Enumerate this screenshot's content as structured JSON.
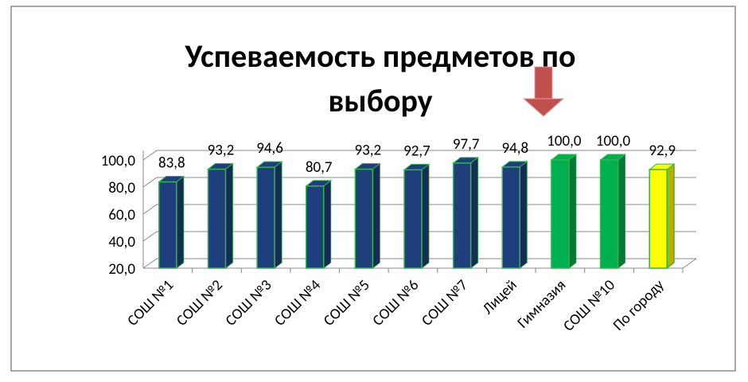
{
  "chart_data": {
    "type": "bar",
    "title": "Успеваемость предметов по выбору",
    "categories": [
      "СОШ №1",
      "СОШ №2",
      "СОШ №3",
      "СОШ №4",
      "СОШ №5",
      "СОШ №6",
      "СОШ №7",
      "Лицей",
      "Гимназия",
      "СОШ №10",
      "По городу"
    ],
    "values": [
      83.8,
      93.2,
      94.6,
      80.7,
      93.2,
      92.7,
      97.7,
      94.8,
      100.0,
      100.0,
      92.9
    ],
    "value_labels": [
      "83,8",
      "93,2",
      "94,6",
      "80,7",
      "93,2",
      "92,7",
      "97,7",
      "94,8",
      "100,0",
      "100,0",
      "92,9"
    ],
    "colors": [
      "#1f3f7c",
      "#1f3f7c",
      "#1f3f7c",
      "#1f3f7c",
      "#1f3f7c",
      "#1f3f7c",
      "#1f3f7c",
      "#1f3f7c",
      "#00b050",
      "#00b050",
      "#ffff00"
    ],
    "ylim": [
      20,
      100
    ],
    "yticks": [
      {
        "value": 20,
        "label": "20,0"
      },
      {
        "value": 40,
        "label": "40,0"
      },
      {
        "value": 60,
        "label": "60,0"
      },
      {
        "value": 80,
        "label": "80,0"
      },
      {
        "value": 100,
        "label": "100,0"
      }
    ],
    "grid": true
  }
}
